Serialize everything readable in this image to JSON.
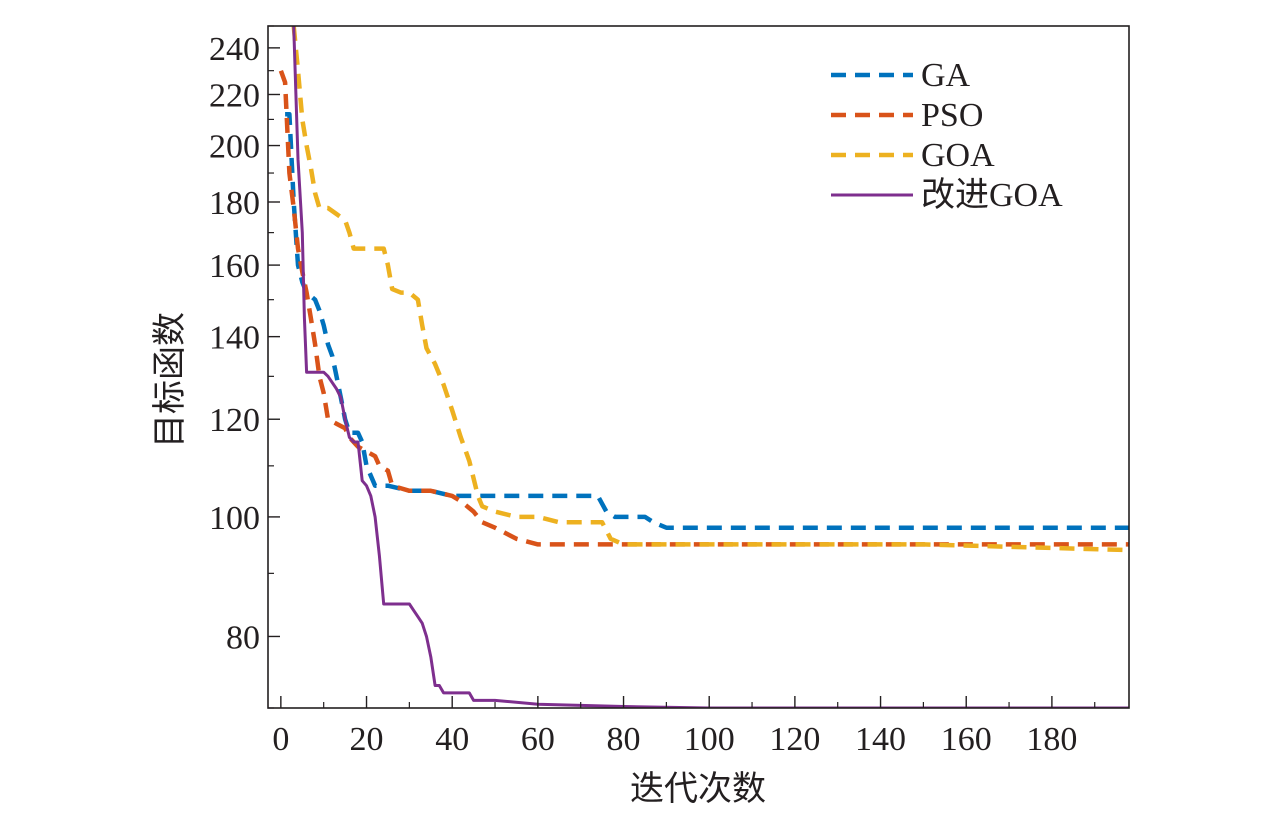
{
  "chart_data": {
    "type": "line",
    "xlabel": "迭代次数",
    "ylabel": "目标函数",
    "xlim": [
      -3,
      198
    ],
    "ylim": [
      70,
      250
    ],
    "y_scale": "log",
    "grid": false,
    "legend_position": "top-right",
    "x_ticks": [
      0,
      20,
      40,
      60,
      80,
      100,
      120,
      140,
      160,
      180
    ],
    "y_ticks": [
      80,
      100,
      120,
      140,
      160,
      180,
      200,
      220,
      240
    ],
    "series": [
      {
        "name": "GA",
        "color": "#0072bd",
        "style": "dashed",
        "x": [
          1,
          2,
          3,
          4,
          5,
          6,
          8,
          9,
          10,
          11,
          12,
          13,
          14,
          15,
          16,
          17,
          18,
          19,
          20,
          21,
          22,
          25,
          30,
          35,
          40,
          42,
          45,
          50,
          60,
          70,
          74,
          76,
          78,
          85,
          87,
          90,
          100,
          120,
          150,
          198
        ],
        "y": [
          212,
          212,
          180,
          160,
          155,
          152,
          150,
          147,
          143,
          138,
          135,
          130,
          125,
          120,
          117,
          117,
          117,
          115,
          110,
          108,
          106,
          106,
          105,
          105,
          104,
          104,
          104,
          104,
          104,
          104,
          104,
          101,
          100,
          100,
          99,
          98,
          98,
          98,
          98,
          98
        ]
      },
      {
        "name": "PSO",
        "color": "#d95319",
        "style": "dashed",
        "x": [
          0,
          1,
          2,
          3,
          4,
          5,
          6,
          7,
          8,
          9,
          10,
          11,
          13,
          15,
          16,
          18,
          20,
          22,
          23,
          25,
          26,
          30,
          35,
          40,
          42,
          45,
          47,
          50,
          55,
          60,
          70,
          80,
          100,
          120,
          150,
          198
        ],
        "y": [
          230,
          225,
          190,
          178,
          165,
          158,
          152,
          145,
          138,
          130,
          126,
          120,
          119,
          118,
          116,
          114,
          113,
          112,
          110,
          109,
          106,
          105,
          105,
          104,
          103,
          101,
          99,
          98,
          96,
          95,
          95,
          95,
          95,
          95,
          95,
          95
        ]
      },
      {
        "name": "GOA",
        "color": "#edb120",
        "style": "dashed",
        "x": [
          3,
          4,
          5,
          6,
          7,
          8,
          9,
          11,
          13,
          15,
          16,
          17,
          19,
          20,
          24,
          25,
          26,
          28,
          30,
          32,
          33,
          34,
          36,
          38,
          40,
          42,
          44,
          46,
          47,
          50,
          55,
          60,
          65,
          70,
          75,
          77,
          80,
          100,
          120,
          150,
          198
        ],
        "y": [
          250,
          230,
          210,
          200,
          192,
          183,
          178,
          178,
          176,
          174,
          170,
          165,
          165,
          165,
          165,
          160,
          153,
          152,
          152,
          150,
          143,
          137,
          133,
          128,
          122,
          116,
          111,
          104,
          102,
          101,
          100,
          100,
          99,
          99,
          99,
          96,
          95,
          95,
          95,
          95,
          94
        ]
      },
      {
        "name": "改进GOA",
        "color": "#7e2f8e",
        "style": "solid",
        "x": [
          3,
          4,
          5,
          5.5,
          6,
          7,
          10,
          11,
          13,
          14,
          15,
          16,
          17,
          18,
          19,
          20,
          21,
          22,
          23,
          24,
          25,
          28,
          30,
          31,
          32,
          33,
          34,
          35,
          36,
          37,
          38,
          40,
          42,
          44,
          45,
          47,
          50,
          60,
          80,
          100,
          130,
          160,
          198
        ],
        "y": [
          250,
          195,
          170,
          145,
          131,
          131,
          131,
          130,
          127,
          125,
          120,
          116,
          115,
          115,
          107,
          106,
          104,
          100,
          93,
          85,
          85,
          85,
          85,
          84,
          83,
          82,
          80,
          77,
          73,
          73,
          72,
          72,
          72,
          72,
          71,
          71,
          71,
          70.5,
          70.2,
          70,
          70,
          70,
          70
        ]
      }
    ]
  }
}
